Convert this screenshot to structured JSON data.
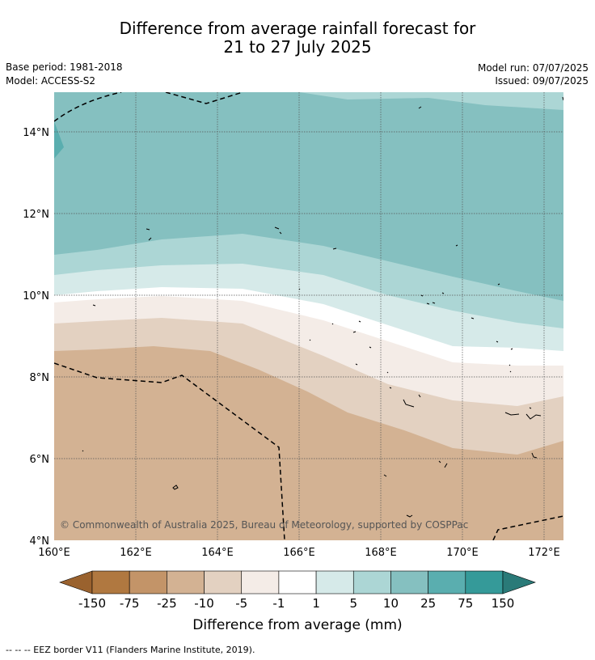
{
  "title": {
    "line1": "Difference from average rainfall forecast for",
    "line2": "21 to 27 July 2025"
  },
  "meta": {
    "base_period": "Base period: 1981-2018",
    "model": "Model: ACCESS-S2",
    "model_run": "Model run: 07/07/2025",
    "issued": "Issued: 09/07/2025"
  },
  "map": {
    "lon_range": [
      160,
      172.5
    ],
    "lat_range": [
      4,
      15
    ],
    "lon_ticks": [
      {
        "value": 160,
        "label": "160°E"
      },
      {
        "value": 162,
        "label": "162°E"
      },
      {
        "value": 164,
        "label": "164°E"
      },
      {
        "value": 166,
        "label": "166°E"
      },
      {
        "value": 168,
        "label": "168°E"
      },
      {
        "value": 170,
        "label": "170°E"
      },
      {
        "value": 172,
        "label": "172°E"
      }
    ],
    "lat_ticks": [
      {
        "value": 4,
        "label": "4°N"
      },
      {
        "value": 6,
        "label": "6°N"
      },
      {
        "value": 8,
        "label": "8°N"
      },
      {
        "value": 10,
        "label": "10°N"
      },
      {
        "value": 12,
        "label": "12°N"
      },
      {
        "value": 14,
        "label": "14°N"
      }
    ],
    "gridlines": true,
    "copyright": "© Commonwealth of Australia 2025, Bureau of Meteorology, supported by COSPPac"
  },
  "colorbar": {
    "title": "Difference from average (mm)",
    "labels": [
      "-150",
      "-75",
      "-25",
      "-10",
      "-5",
      "-1",
      "1",
      "5",
      "10",
      "25",
      "75",
      "150"
    ],
    "low_extend_color": "#9a622e",
    "high_extend_color": "#2a7a78",
    "segment_colors": [
      "#b07840",
      "#c39468",
      "#d3b293",
      "#e3d1c1",
      "#f4ece7",
      "#ffffff",
      "#d6eae9",
      "#acd6d5",
      "#85c0c0",
      "#5aaeaf",
      "#359a99"
    ]
  },
  "footer": "--  --  -- EEZ border V11 (Flanders Marine Institute, 2019)."
}
